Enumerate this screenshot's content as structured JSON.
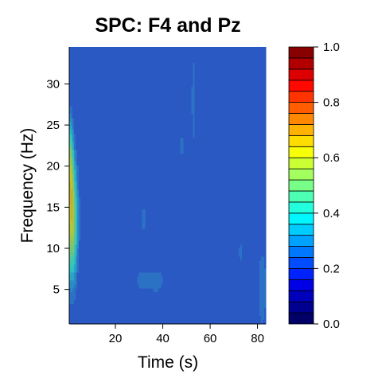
{
  "chart_data": {
    "type": "heatmap",
    "title": "SPC: F4 and Pz",
    "xlabel": "Time (s)",
    "ylabel": "Frequency (Hz)",
    "xlim": [
      0.5,
      83.5
    ],
    "ylim": [
      0.8,
      34.5
    ],
    "x_ticks": [
      20,
      40,
      60,
      80
    ],
    "y_ticks": [
      5,
      10,
      15,
      20,
      25,
      30
    ],
    "colorbar": {
      "min": 0,
      "max": 1,
      "ticks": [
        0.0,
        0.2,
        0.4,
        0.6,
        0.8,
        1.0
      ],
      "tick_labels": [
        "0.0",
        "0.2",
        "0.4",
        "0.6",
        "0.8",
        "1.0"
      ],
      "colors": [
        "#000066",
        "#00008f",
        "#0000bb",
        "#0000e6",
        "#0022ff",
        "#004dff",
        "#0077ff",
        "#00a2ff",
        "#00ccff",
        "#00f7ff",
        "#22ffdd",
        "#4dffb2",
        "#77ff88",
        "#a2ff5d",
        "#ccff33",
        "#f7ff08",
        "#ffdd00",
        "#ffb200",
        "#ff8800",
        "#ff5d00",
        "#ff3300",
        "#ff0800",
        "#dd0000",
        "#b20000",
        "#880000"
      ]
    },
    "background_value": 0.2,
    "blobs": [
      {
        "x": 1.5,
        "y": 13.5,
        "sx": 1.6,
        "sy": 4.8,
        "amp": 0.42
      },
      {
        "x": 0.9,
        "y": 20.5,
        "sx": 0.9,
        "sy": 3.5,
        "amp": 0.25
      },
      {
        "x": 31,
        "y": 6,
        "sx": 2.0,
        "sy": 1.0,
        "amp": 0.06
      },
      {
        "x": 37,
        "y": 6,
        "sx": 2.5,
        "sy": 1.0,
        "amp": 0.08
      },
      {
        "x": 32,
        "y": 13.5,
        "sx": 1.3,
        "sy": 2.0,
        "amp": 0.05
      },
      {
        "x": 48,
        "y": 22.5,
        "sx": 1.0,
        "sy": 1.5,
        "amp": 0.05
      },
      {
        "x": 53,
        "y": 28,
        "sx": 1.0,
        "sy": 7.0,
        "amp": 0.05
      },
      {
        "x": 73,
        "y": 9.5,
        "sx": 1.0,
        "sy": 1.5,
        "amp": 0.05
      },
      {
        "x": 66,
        "y": 9,
        "sx": 1.5,
        "sy": 2.0,
        "amp": 0.04
      },
      {
        "x": 82,
        "y": 5,
        "sx": 1.2,
        "sy": 3.5,
        "amp": 0.08
      },
      {
        "x": 25,
        "y": 10,
        "sx": 1.0,
        "sy": 1.2,
        "amp": 0.03
      },
      {
        "x": 58,
        "y": 4,
        "sx": 2.0,
        "sy": 1.5,
        "amp": 0.03
      }
    ]
  }
}
